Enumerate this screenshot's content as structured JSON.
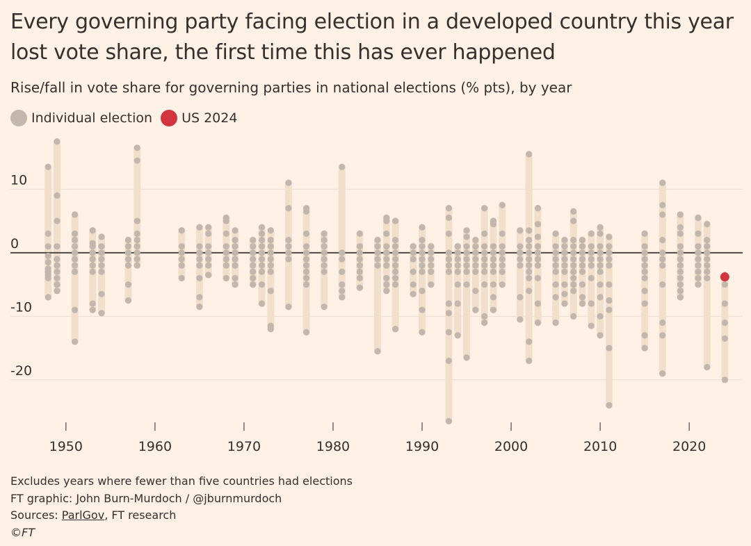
{
  "title": "Every governing party facing election in a developed country this year lost vote share, the first time this has ever happened",
  "subtitle": "Rise/fall in vote share for governing parties in national elections (% pts), by year",
  "legend": [
    {
      "label": "Individual election",
      "color": "#c2b6ad"
    },
    {
      "label": "US 2024",
      "color": "#d2353f"
    }
  ],
  "footer": {
    "note": "Excludes years where fewer than five countries had elections",
    "credit": "FT graphic: John Burn-Murdoch / @jburnmurdoch",
    "sources_prefix": "Sources: ",
    "sources_link": "ParlGov",
    "sources_suffix": ", FT research",
    "copyright": "©FT"
  },
  "colors": {
    "background": "#fff1e5",
    "range_bar": "#f2dfcb",
    "dot": "#c2b6ad",
    "highlight": "#d2353f",
    "zero_line": "#4d4845",
    "gridline": "#e9dcd0",
    "text": "#33302e"
  },
  "chart_data": {
    "type": "scatter",
    "xlim": [
      1946.5,
      2026
    ],
    "ylim": [
      -28,
      19
    ],
    "x_ticks": [
      1950,
      1960,
      1970,
      1980,
      1990,
      2000,
      2010,
      2020
    ],
    "y_ticks": [
      10,
      0,
      -10,
      -20
    ],
    "y_tick_labels": [
      "10",
      "0",
      "-10",
      "-20"
    ],
    "grid": true,
    "legend_position": "top-left",
    "series": [
      {
        "name": "Individual election",
        "points": [
          {
            "year": 1948,
            "values": [
              13.5,
              3,
              1,
              -0.5,
              -1.5,
              -2.5,
              -3,
              -3.5,
              -4,
              -7
            ]
          },
          {
            "year": 1949,
            "values": [
              17.5,
              9,
              5,
              1,
              -1,
              -2,
              -3,
              -4,
              -5,
              -6
            ]
          },
          {
            "year": 1951,
            "values": [
              6,
              3,
              2,
              1,
              0,
              -1,
              -2,
              -3,
              -9,
              -14
            ]
          },
          {
            "year": 1953,
            "values": [
              3.5,
              1.5,
              1,
              0,
              -1,
              -2,
              -3,
              -8,
              -9
            ]
          },
          {
            "year": 1954,
            "values": [
              2.5,
              1,
              0,
              -1,
              -2,
              -3,
              -6.5,
              -9.5
            ]
          },
          {
            "year": 1957,
            "values": [
              2,
              1,
              0,
              -1,
              -2,
              -5,
              -7.5
            ]
          },
          {
            "year": 1958,
            "values": [
              16.5,
              14.5,
              5,
              3,
              2,
              1,
              0,
              -1,
              -2
            ]
          },
          {
            "year": 1963,
            "values": [
              3.5,
              1,
              0,
              -1,
              -2,
              -4
            ]
          },
          {
            "year": 1965,
            "values": [
              4,
              1,
              0,
              -1,
              -2,
              -4,
              -7,
              -8.5
            ]
          },
          {
            "year": 1966,
            "values": [
              4,
              3,
              1,
              0,
              -1,
              -2,
              -3.5
            ]
          },
          {
            "year": 1968,
            "values": [
              5.5,
              5,
              3,
              1,
              0,
              -1,
              -2,
              -4
            ]
          },
          {
            "year": 1969,
            "values": [
              3.5,
              2,
              1,
              0,
              -1,
              -2,
              -4,
              -5
            ]
          },
          {
            "year": 1971,
            "values": [
              2,
              1,
              0,
              -1,
              -2,
              -3,
              -4,
              -5
            ]
          },
          {
            "year": 1972,
            "values": [
              4,
              3,
              2,
              1,
              0,
              -1,
              -2,
              -3,
              -5,
              -8
            ]
          },
          {
            "year": 1973,
            "values": [
              3.5,
              2,
              1,
              0,
              -1,
              -2,
              -3,
              -6,
              -11.5,
              -12
            ]
          },
          {
            "year": 1975,
            "values": [
              11,
              7,
              2,
              1,
              0,
              -1,
              -8.5
            ]
          },
          {
            "year": 1977,
            "values": [
              7,
              6.5,
              3,
              1,
              0,
              -1,
              -2,
              -3,
              -4,
              -5,
              -12.5
            ]
          },
          {
            "year": 1979,
            "values": [
              3,
              2,
              1,
              0,
              -1,
              -2,
              -3,
              -8.5
            ]
          },
          {
            "year": 1981,
            "values": [
              13.5,
              0,
              -1,
              -3,
              -5,
              -6,
              -7
            ]
          },
          {
            "year": 1983,
            "values": [
              3,
              1,
              0,
              -1,
              -2,
              -3,
              -4,
              -5.5
            ]
          },
          {
            "year": 1985,
            "values": [
              2,
              1,
              0,
              -1,
              -2,
              -15.5
            ]
          },
          {
            "year": 1986,
            "values": [
              5.5,
              5,
              3,
              1,
              0,
              -1,
              -2,
              -4,
              -5,
              -6
            ]
          },
          {
            "year": 1987,
            "values": [
              5,
              2,
              1,
              0,
              -1,
              -2,
              -3,
              -4,
              -5,
              -12
            ]
          },
          {
            "year": 1989,
            "values": [
              1,
              0,
              -1,
              -3,
              -5,
              -6.5
            ]
          },
          {
            "year": 1990,
            "values": [
              4,
              2,
              1,
              0,
              -1,
              -2,
              -3,
              -6,
              -9,
              -12.5
            ]
          },
          {
            "year": 1991,
            "values": [
              1,
              0,
              -1,
              -2,
              -3,
              -5
            ]
          },
          {
            "year": 1993,
            "values": [
              7,
              5.5,
              3,
              0,
              -1,
              -2,
              -3,
              -8,
              -9.5,
              -12.5,
              -17,
              -26.5
            ]
          },
          {
            "year": 1994,
            "values": [
              1,
              0,
              -1,
              -2,
              -3,
              -5,
              -8,
              -13
            ]
          },
          {
            "year": 1995,
            "values": [
              3.5,
              2.5,
              1,
              0,
              -1,
              -2,
              -3,
              -5,
              -16.5
            ]
          },
          {
            "year": 1996,
            "values": [
              2,
              1,
              0,
              -1,
              -2,
              -3,
              -6,
              -9
            ]
          },
          {
            "year": 1997,
            "values": [
              7,
              3,
              1,
              0,
              -1,
              -2,
              -3,
              -5,
              -10,
              -11
            ]
          },
          {
            "year": 1998,
            "values": [
              5,
              4.5,
              1,
              0,
              -1,
              -2,
              -3,
              -5,
              -7,
              -9
            ]
          },
          {
            "year": 1999,
            "values": [
              7.5,
              3,
              1,
              0,
              -1,
              -2,
              -3,
              -5
            ]
          },
          {
            "year": 2001,
            "values": [
              3.5,
              1,
              0,
              -1,
              -2,
              -7,
              -10.5
            ]
          },
          {
            "year": 2002,
            "values": [
              15.5,
              3.5,
              2,
              1,
              0,
              -1,
              -2,
              -3,
              -4,
              -6,
              -14,
              -17
            ]
          },
          {
            "year": 2003,
            "values": [
              7,
              4.5,
              2.5,
              1,
              0,
              -1,
              -2,
              -4,
              -8,
              -11
            ]
          },
          {
            "year": 2005,
            "values": [
              3,
              1,
              0,
              -1,
              -2,
              -3,
              -5,
              -7,
              -11
            ]
          },
          {
            "year": 2006,
            "values": [
              2,
              1,
              0,
              -1,
              -2,
              -3,
              -5,
              -6.5,
              -8
            ]
          },
          {
            "year": 2007,
            "values": [
              6.5,
              5,
              2,
              1,
              0,
              -1,
              -2,
              -3,
              -4,
              -5,
              -6,
              -10
            ]
          },
          {
            "year": 2008,
            "values": [
              2,
              1,
              0,
              -1,
              -2,
              -3,
              -5,
              -7,
              -8
            ]
          },
          {
            "year": 2009,
            "values": [
              3,
              1,
              0,
              -1,
              -2,
              -4,
              -8,
              -11.5
            ]
          },
          {
            "year": 2010,
            "values": [
              4,
              3,
              1,
              0,
              -1,
              -2,
              -3,
              -5,
              -7,
              -10,
              -13
            ]
          },
          {
            "year": 2011,
            "values": [
              2.5,
              1,
              0,
              -1,
              -2,
              -5,
              -7.5,
              -9,
              -15,
              -24
            ]
          },
          {
            "year": 2015,
            "values": [
              3,
              1,
              0,
              -1,
              -2,
              -3,
              -4,
              -6,
              -8,
              -13,
              -15
            ]
          },
          {
            "year": 2017,
            "values": [
              11,
              7.5,
              6,
              2,
              0,
              -1,
              -2,
              -5,
              -11,
              -13,
              -19
            ]
          },
          {
            "year": 2019,
            "values": [
              6,
              4,
              3,
              1,
              0,
              -1,
              -2,
              -3,
              -4,
              -5,
              -6,
              -7
            ]
          },
          {
            "year": 2021,
            "values": [
              5.5,
              3,
              1,
              0,
              -1,
              -2,
              -3,
              -4,
              -5
            ]
          },
          {
            "year": 2022,
            "values": [
              4.5,
              2,
              1,
              0,
              -1,
              -2,
              -3,
              -4,
              -18
            ]
          },
          {
            "year": 2024,
            "values": [
              -3.5,
              -5,
              -8,
              -11,
              -13.5,
              -20
            ]
          }
        ]
      },
      {
        "name": "US 2024",
        "points": [
          {
            "year": 2024,
            "values": [
              -3.8
            ]
          }
        ]
      }
    ]
  }
}
